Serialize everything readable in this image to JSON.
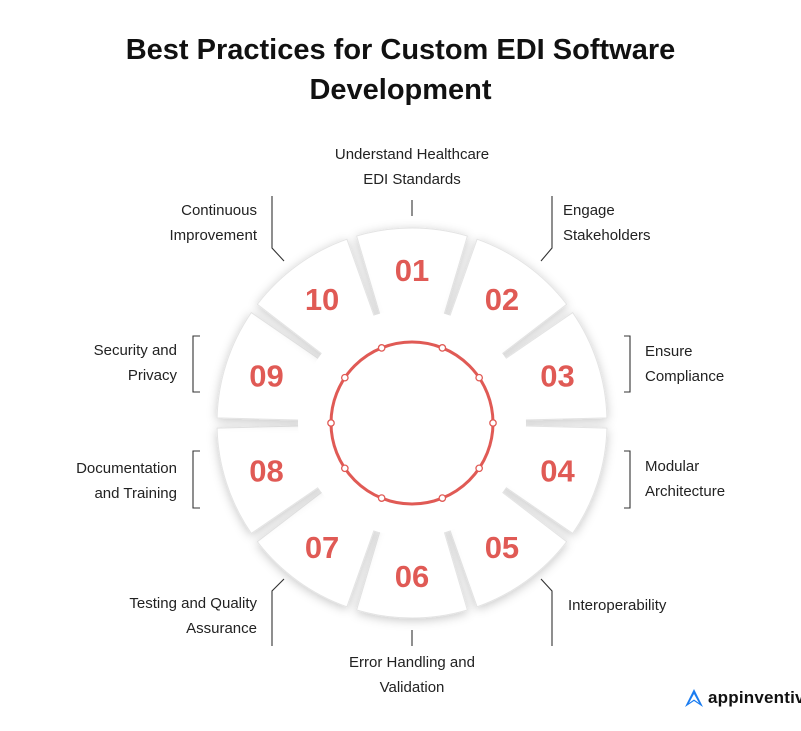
{
  "title": {
    "line1": "Best Practices for Custom EDI Software",
    "line2": "Development"
  },
  "accent_color": "#e05a55",
  "steps": [
    {
      "number": "01",
      "line1": "Understand Healthcare",
      "line2": "EDI Standards"
    },
    {
      "number": "02",
      "line1": "Engage",
      "line2": "Stakeholders"
    },
    {
      "number": "03",
      "line1": "Ensure",
      "line2": "Compliance"
    },
    {
      "number": "04",
      "line1": "Modular",
      "line2": "Architecture"
    },
    {
      "number": "05",
      "line1": "Interoperability",
      "line2": ""
    },
    {
      "number": "06",
      "line1": "Error Handling and",
      "line2": "Validation"
    },
    {
      "number": "07",
      "line1": "Testing and Quality",
      "line2": "Assurance"
    },
    {
      "number": "08",
      "line1": "Documentation",
      "line2": "and Training"
    },
    {
      "number": "09",
      "line1": "Security and",
      "line2": "Privacy"
    },
    {
      "number": "10",
      "line1": "Continuous",
      "line2": "Improvement"
    }
  ],
  "logo": {
    "text": "appinventiv",
    "color": "#1a7cf0"
  }
}
